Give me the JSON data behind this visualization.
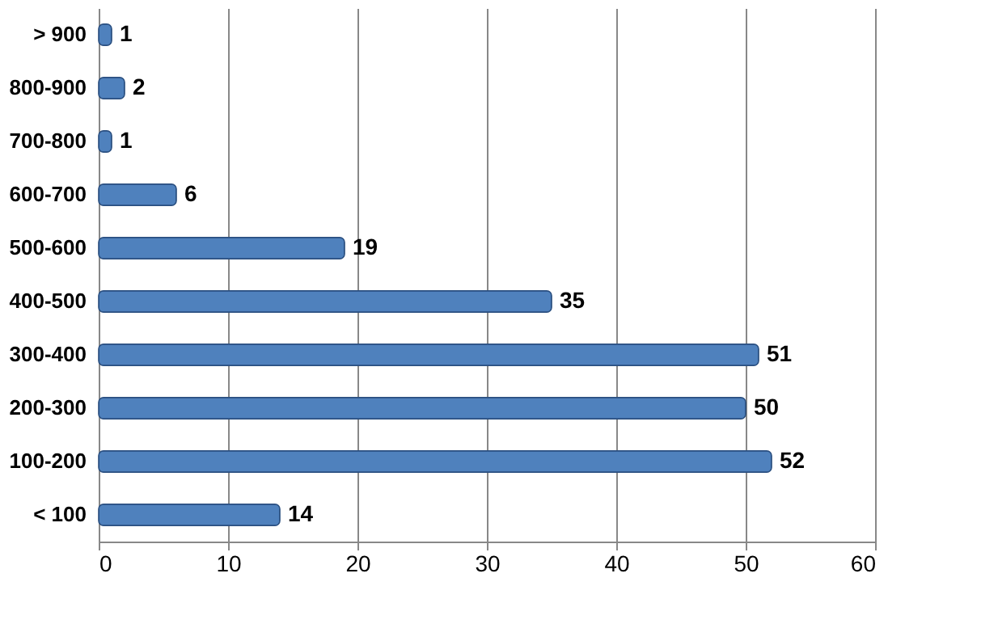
{
  "chart_data": {
    "type": "bar",
    "orientation": "horizontal",
    "categories": [
      "> 900",
      "800-900",
      "700-800",
      "600-700",
      "500-600",
      "400-500",
      "300-400",
      "200-300",
      "100-200",
      "<  100"
    ],
    "values": [
      1,
      2,
      1,
      6,
      19,
      35,
      51,
      50,
      52,
      14
    ],
    "color": "#4f81bd",
    "xlim": [
      0,
      60
    ],
    "xticks": [
      0,
      10,
      20,
      30,
      40,
      50,
      60
    ],
    "grid": "x",
    "data_labels": true
  }
}
